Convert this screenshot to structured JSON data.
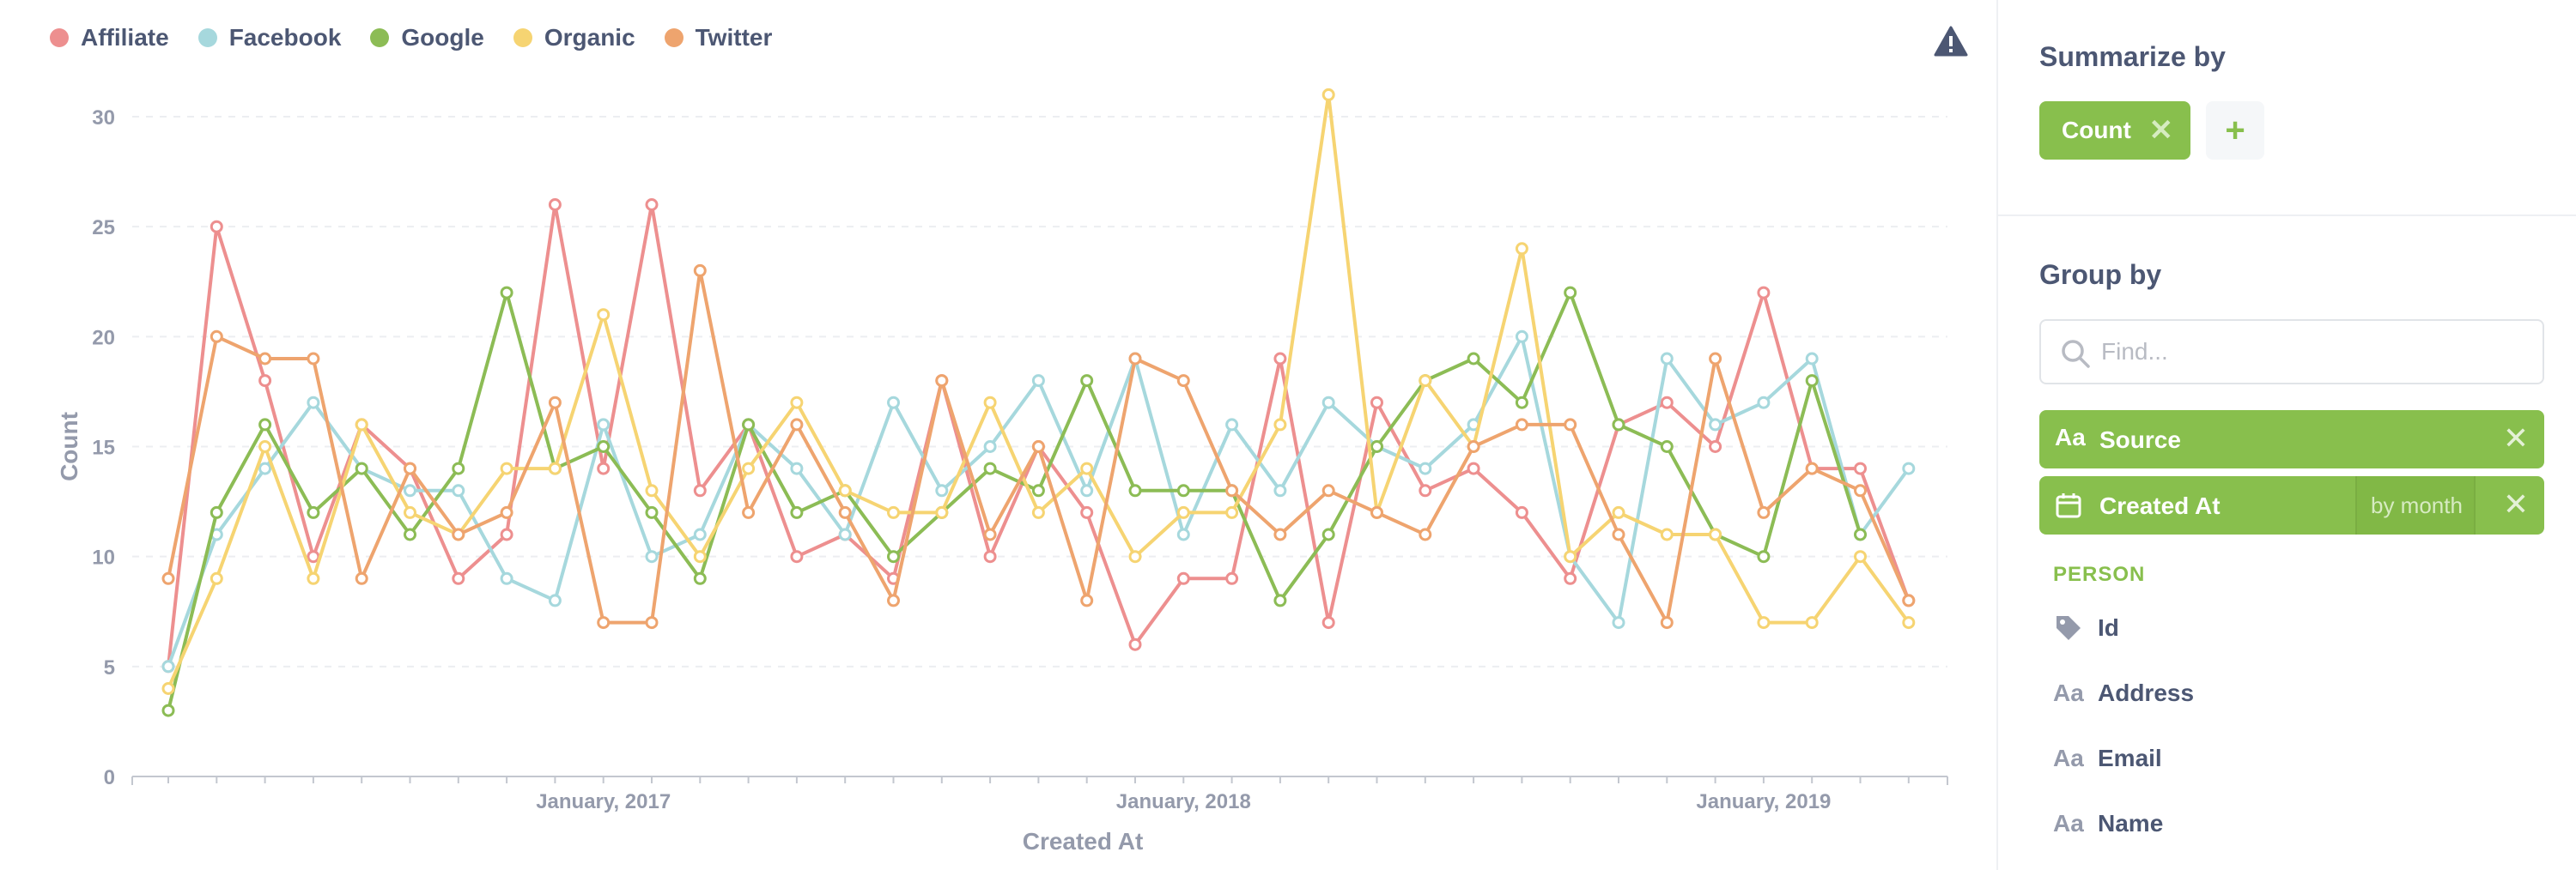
{
  "legend": [
    {
      "name": "Affiliate",
      "color": "#ed8f8f"
    },
    {
      "name": "Facebook",
      "color": "#a6d8dd"
    },
    {
      "name": "Google",
      "color": "#8cbc55"
    },
    {
      "name": "Organic",
      "color": "#f6d472"
    },
    {
      "name": "Twitter",
      "color": "#eea46e"
    }
  ],
  "warning_icon": "warning-triangle-icon",
  "chart_data": {
    "type": "line",
    "xlabel": "Created At",
    "ylabel": "Count",
    "ylim": [
      0,
      30
    ],
    "y_ticks": [
      "0",
      "5",
      "10",
      "15",
      "20",
      "25",
      "30"
    ],
    "x_tick_labels": [
      {
        "label": "January, 2017",
        "month": "2017-01"
      },
      {
        "label": "January, 2018",
        "month": "2018-01"
      },
      {
        "label": "January, 2019",
        "month": "2019-01"
      }
    ],
    "grid": "horizontal dashed",
    "legend_position": "top-left",
    "x": [
      "2016-04",
      "2016-05",
      "2016-06",
      "2016-07",
      "2016-08",
      "2016-09",
      "2016-10",
      "2016-11",
      "2016-12",
      "2017-01",
      "2017-02",
      "2017-03",
      "2017-04",
      "2017-05",
      "2017-06",
      "2017-07",
      "2017-08",
      "2017-09",
      "2017-10",
      "2017-11",
      "2017-12",
      "2018-01",
      "2018-02",
      "2018-03",
      "2018-04",
      "2018-05",
      "2018-06",
      "2018-07",
      "2018-08",
      "2018-09",
      "2018-10",
      "2018-11",
      "2018-12",
      "2019-01",
      "2019-02",
      "2019-03",
      "2019-04"
    ],
    "series": [
      {
        "name": "Affiliate",
        "color": "#ed8f8f",
        "values": [
          5,
          25,
          18,
          10,
          16,
          14,
          9,
          11,
          26,
          14,
          26,
          13,
          16,
          10,
          11,
          9,
          18,
          10,
          15,
          12,
          6,
          9,
          9,
          19,
          7,
          17,
          13,
          14,
          12,
          9,
          16,
          17,
          15,
          22,
          14,
          14,
          8
        ]
      },
      {
        "name": "Facebook",
        "color": "#a6d8dd",
        "values": [
          5,
          11,
          14,
          17,
          14,
          13,
          13,
          9,
          8,
          16,
          10,
          11,
          16,
          14,
          11,
          17,
          13,
          15,
          18,
          13,
          19,
          11,
          16,
          13,
          17,
          15,
          14,
          16,
          20,
          10,
          7,
          19,
          16,
          17,
          19,
          11,
          14
        ]
      },
      {
        "name": "Google",
        "color": "#8cbc55",
        "values": [
          3,
          12,
          16,
          12,
          14,
          11,
          14,
          22,
          14,
          15,
          12,
          9,
          16,
          12,
          13,
          10,
          12,
          14,
          13,
          18,
          13,
          13,
          13,
          8,
          11,
          15,
          18,
          19,
          17,
          22,
          16,
          15,
          11,
          10,
          18,
          11,
          null
        ]
      },
      {
        "name": "Organic",
        "color": "#f6d472",
        "values": [
          4,
          9,
          15,
          9,
          16,
          12,
          11,
          14,
          14,
          21,
          13,
          10,
          14,
          17,
          13,
          12,
          12,
          17,
          12,
          14,
          10,
          12,
          12,
          16,
          31,
          12,
          18,
          15,
          24,
          10,
          12,
          11,
          11,
          7,
          7,
          10,
          7
        ]
      },
      {
        "name": "Twitter",
        "color": "#eea46e",
        "values": [
          9,
          20,
          19,
          19,
          9,
          14,
          11,
          12,
          17,
          7,
          7,
          23,
          12,
          16,
          12,
          8,
          18,
          11,
          15,
          8,
          19,
          18,
          13,
          11,
          13,
          12,
          11,
          15,
          16,
          16,
          11,
          7,
          19,
          12,
          14,
          13,
          8
        ]
      }
    ]
  },
  "sidebar": {
    "summarize_title": "Summarize by",
    "metric_label": "Count",
    "remove_icon": "close-icon",
    "add_icon": "plus-icon",
    "group_title": "Group by",
    "find_placeholder": "Find...",
    "breakouts": [
      {
        "icon": "Aa",
        "label": "Source"
      },
      {
        "icon": "calendar-icon",
        "label": "Created At",
        "bucket": "by month"
      }
    ],
    "table_label": "PERSON",
    "fields": [
      {
        "icon": "tag-icon",
        "label": "Id"
      },
      {
        "icon": "Aa",
        "label": "Address"
      },
      {
        "icon": "Aa",
        "label": "Email"
      },
      {
        "icon": "Aa",
        "label": "Name"
      }
    ]
  }
}
